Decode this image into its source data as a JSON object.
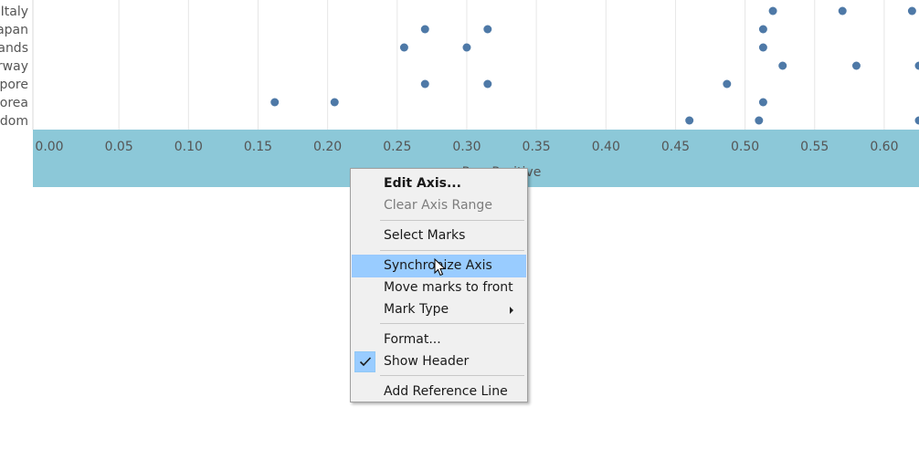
{
  "chart_data": {
    "type": "scatter",
    "orientation": "horizontal dot plot",
    "rows": [
      {
        "label": "Italy",
        "displayed_label": "Italy",
        "values": [
          0.52,
          0.57,
          0.62
        ]
      },
      {
        "label": "Japan",
        "displayed_label": "apan",
        "values": [
          0.27,
          0.315,
          0.513
        ]
      },
      {
        "label": "Netherlands",
        "displayed_label": "ands",
        "values": [
          0.255,
          0.3,
          0.513
        ]
      },
      {
        "label": "Norway",
        "displayed_label": "rway",
        "values": [
          0.527,
          0.58,
          0.625
        ]
      },
      {
        "label": "Singapore",
        "displayed_label": "pore",
        "values": [
          0.27,
          0.315,
          0.487
        ]
      },
      {
        "label": "South Korea",
        "displayed_label": "orea",
        "values": [
          0.162,
          0.205,
          0.513
        ]
      },
      {
        "label": "United Kingdom",
        "displayed_label": "dom",
        "values": [
          0.46,
          0.51,
          0.625
        ]
      }
    ],
    "x_ticks": [
      "0.00",
      "0.05",
      "0.10",
      "0.15",
      "0.20",
      "0.25",
      "0.30",
      "0.35",
      "0.40",
      "0.45",
      "0.50",
      "0.55",
      "0.60"
    ],
    "xlim": [
      0.0,
      0.625
    ],
    "xlabel": "Pos. Positive",
    "grid": true,
    "colors": {
      "marks": "#4e79a7",
      "axis_band": "#8cc8d8",
      "grid": "#e6e6e6"
    }
  },
  "context_menu": {
    "items": [
      {
        "label": "Edit Axis...",
        "style": "bold"
      },
      {
        "label": "Clear Axis Range",
        "style": "disabled"
      },
      {
        "label": "Select Marks"
      },
      {
        "label": "Synchronize Axis",
        "state": "hover"
      },
      {
        "label": "Move marks to front"
      },
      {
        "label": "Mark Type",
        "submenu": true
      },
      {
        "label": "Format..."
      },
      {
        "label": "Show Header",
        "checked": true
      },
      {
        "label": "Add Reference Line"
      }
    ]
  }
}
